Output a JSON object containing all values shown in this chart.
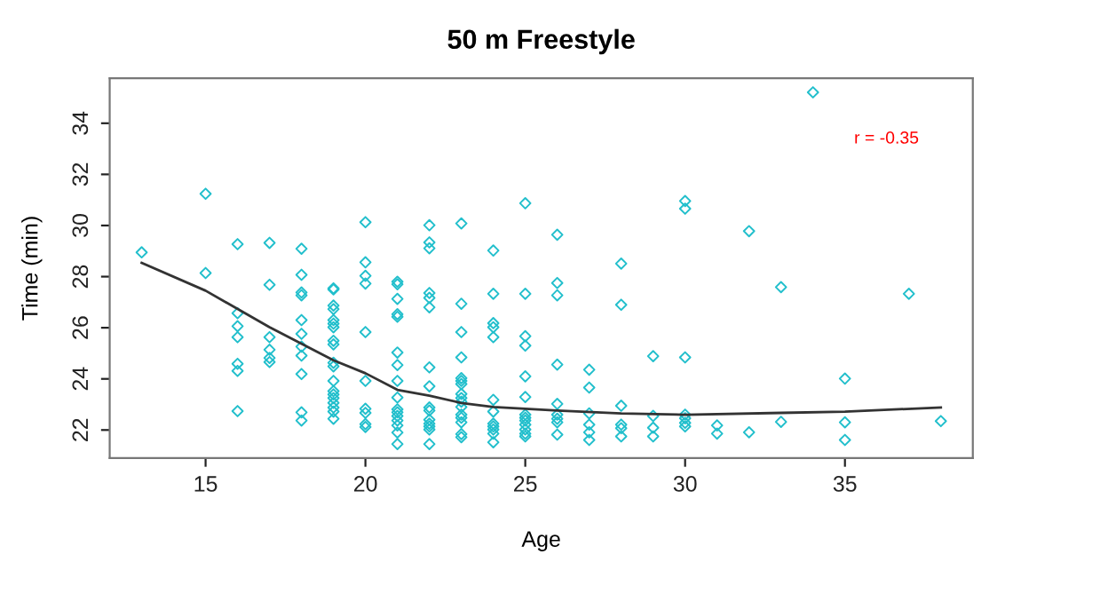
{
  "chart_data": {
    "type": "scatter",
    "title": "50 m Freestyle",
    "xlabel": "Age",
    "ylabel": "Time (min)",
    "xlim": [
      12,
      39
    ],
    "ylim": [
      20.9,
      35.76
    ],
    "xticks": [
      15,
      20,
      25,
      30,
      35
    ],
    "yticks": [
      22,
      24,
      26,
      28,
      30,
      32,
      34
    ],
    "grid": false,
    "legend": false,
    "annotations": [
      "r = -0.35"
    ],
    "series": [
      {
        "marker": "diamond",
        "color": "#22bfcc",
        "x": [
          13,
          15,
          15,
          16,
          16,
          16,
          16,
          16,
          16,
          16,
          17,
          17,
          17,
          17,
          17,
          17,
          18,
          18,
          18,
          18,
          18,
          18,
          18,
          18,
          18,
          18,
          18,
          19,
          19,
          19,
          19,
          19,
          19,
          19,
          19,
          19,
          19,
          19,
          19,
          19,
          19,
          19,
          19,
          19,
          19,
          19,
          20,
          20,
          20,
          20,
          20,
          20,
          20,
          20,
          20,
          20,
          21,
          21,
          21,
          21,
          21,
          21,
          21,
          21,
          21,
          21,
          21,
          21,
          21,
          21,
          21,
          21,
          22,
          22,
          22,
          22,
          22,
          22,
          22,
          22,
          22,
          22,
          22,
          22,
          22,
          22,
          22,
          23,
          23,
          23,
          23,
          23,
          23,
          23,
          23,
          23,
          23,
          23,
          23,
          23,
          23,
          23,
          23,
          24,
          24,
          24,
          24,
          24,
          24,
          24,
          24,
          24,
          24,
          24,
          24,
          25,
          25,
          25,
          25,
          25,
          25,
          25,
          25,
          25,
          25,
          25,
          25,
          25,
          26,
          26,
          26,
          26,
          26,
          26,
          26,
          26,
          26,
          27,
          27,
          27,
          27,
          27,
          27,
          28,
          28,
          28,
          28,
          28,
          28,
          29,
          29,
          29,
          29,
          30,
          30,
          30,
          30,
          30,
          30,
          30,
          31,
          31,
          32,
          32,
          33,
          33,
          34,
          35,
          35,
          35,
          37,
          38
        ],
        "values": [
          28.95,
          31.24,
          28.14,
          29.27,
          26.57,
          26.06,
          25.63,
          24.59,
          24.31,
          22.74,
          29.32,
          27.68,
          25.63,
          25.14,
          24.82,
          24.66,
          29.09,
          28.07,
          27.38,
          27.27,
          26.3,
          25.76,
          25.26,
          24.91,
          24.19,
          22.69,
          22.37,
          27.54,
          26.87,
          26.73,
          26.3,
          26.16,
          26.02,
          25.49,
          25.35,
          24.63,
          24.49,
          23.92,
          23.52,
          23.39,
          23.25,
          23.06,
          22.88,
          22.72,
          22.44,
          27.5,
          30.13,
          28.56,
          28.03,
          27.73,
          25.83,
          23.92,
          22.83,
          22.67,
          22.23,
          22.12,
          27.8,
          27.7,
          27.13,
          26.53,
          26.43,
          25.03,
          24.54,
          23.92,
          23.27,
          22.81,
          22.69,
          22.55,
          22.37,
          22.18,
          21.9,
          21.45,
          30.01,
          29.34,
          29.11,
          27.36,
          27.17,
          26.8,
          24.45,
          23.71,
          22.88,
          22.76,
          22.25,
          22.14,
          22.02,
          21.45,
          22.4,
          30.08,
          26.94,
          25.83,
          24.84,
          24.03,
          23.92,
          23.8,
          23.41,
          23.25,
          23.11,
          22.6,
          22.48,
          21.84,
          21.72,
          22.3,
          22.9,
          29.02,
          27.33,
          26.18,
          26.02,
          25.63,
          23.18,
          22.72,
          22.25,
          22.14,
          22.02,
          21.86,
          21.52,
          30.87,
          27.33,
          25.67,
          25.3,
          24.1,
          23.29,
          22.48,
          22.37,
          22.21,
          22.02,
          21.86,
          21.75,
          22.6,
          29.64,
          27.75,
          27.27,
          24.56,
          23.02,
          22.6,
          22.44,
          22.3,
          21.82,
          24.36,
          23.66,
          22.65,
          22.21,
          21.91,
          21.61,
          28.51,
          26.9,
          22.95,
          22.21,
          22.07,
          21.75,
          24.89,
          22.55,
          22.09,
          21.75,
          30.96,
          30.66,
          24.84,
          22.6,
          22.46,
          22.28,
          22.14,
          22.18,
          21.86,
          29.78,
          21.91,
          27.59,
          22.32,
          35.21,
          24.01,
          22.3,
          21.61,
          27.33,
          22.35
        ]
      },
      {
        "type": "line",
        "color": "#333333",
        "line_style": "solid",
        "x": [
          13,
          15,
          17,
          19,
          20,
          21,
          22,
          23,
          24,
          25,
          26,
          28,
          30,
          33,
          35,
          38
        ],
        "values": [
          28.54,
          27.45,
          26.02,
          24.73,
          24.22,
          23.57,
          23.34,
          23.06,
          22.9,
          22.83,
          22.76,
          22.65,
          22.6,
          22.67,
          22.72,
          22.88
        ]
      }
    ]
  }
}
